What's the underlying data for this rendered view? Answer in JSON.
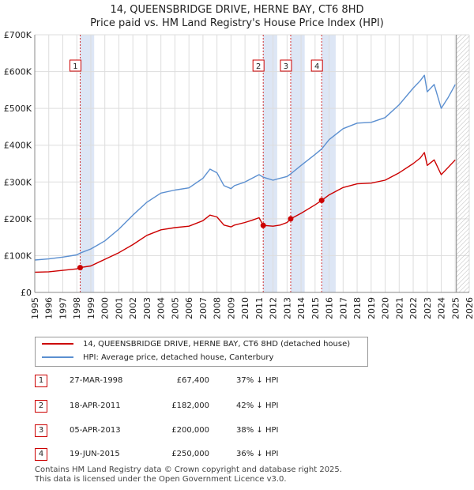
{
  "title_line1": "14, QUEENSBRIDGE DRIVE, HERNE BAY, CT6 8HD",
  "title_line2": "Price paid vs. HM Land Registry's House Price Index (HPI)",
  "colors": {
    "price_line": "#cc0000",
    "hpi_line": "#5b8fd0",
    "band": "#dde6f5",
    "marker_border": "#cc0000",
    "hatch": "#bbbbbb"
  },
  "legend": {
    "property_label": "14, QUEENSBRIDGE DRIVE, HERNE BAY, CT6 8HD (detached house)",
    "hpi_label": "HPI: Average price, detached house, Canterbury"
  },
  "sales": [
    {
      "num": "1",
      "date": "27-MAR-1998",
      "price": "£67,400",
      "hpi_diff": "37% ↓ HPI"
    },
    {
      "num": "2",
      "date": "18-APR-2011",
      "price": "£182,000",
      "hpi_diff": "42% ↓ HPI"
    },
    {
      "num": "3",
      "date": "05-APR-2013",
      "price": "£200,000",
      "hpi_diff": "38% ↓ HPI"
    },
    {
      "num": "4",
      "date": "19-JUN-2015",
      "price": "£250,000",
      "hpi_diff": "36% ↓ HPI"
    }
  ],
  "footer": {
    "line1": "Contains HM Land Registry data © Crown copyright and database right 2025.",
    "line2": "This data is licensed under the Open Government Licence v3.0."
  },
  "chart_data": {
    "type": "line",
    "title": "14, QUEENSBRIDGE DRIVE, HERNE BAY, CT6 8HD",
    "subtitle": "Price paid vs. HM Land Registry's House Price Index (HPI)",
    "xlim": [
      1995,
      2026
    ],
    "ylim": [
      0,
      700000
    ],
    "x_ticks": [
      1995,
      1996,
      1997,
      1998,
      1999,
      2000,
      2001,
      2002,
      2003,
      2004,
      2005,
      2006,
      2007,
      2008,
      2009,
      2010,
      2011,
      2012,
      2013,
      2014,
      2015,
      2016,
      2017,
      2018,
      2019,
      2020,
      2021,
      2022,
      2023,
      2024,
      2025,
      2026
    ],
    "y_ticks": [
      0,
      100000,
      200000,
      300000,
      400000,
      500000,
      600000,
      700000
    ],
    "y_tick_labels": [
      "£0",
      "£100K",
      "£200K",
      "£300K",
      "£400K",
      "£500K",
      "£600K",
      "£700K"
    ],
    "grid": true,
    "hatched_from": 2025.08,
    "sale_markers": [
      {
        "label": "1",
        "x": 1998.24,
        "y": 67400
      },
      {
        "label": "2",
        "x": 2011.3,
        "y": 182000
      },
      {
        "label": "3",
        "x": 2013.26,
        "y": 200000
      },
      {
        "label": "4",
        "x": 2015.47,
        "y": 250000
      }
    ],
    "series": [
      {
        "name": "14, QUEENSBRIDGE DRIVE, HERNE BAY, CT6 8HD (detached house)",
        "x": [
          1995.0,
          1996.0,
          1997.0,
          1998.0,
          1998.24,
          1999.0,
          2000.0,
          2001.0,
          2002.0,
          2003.0,
          2004.0,
          2005.0,
          2006.0,
          2007.0,
          2007.5,
          2008.0,
          2008.5,
          2009.0,
          2009.25,
          2010.0,
          2010.5,
          2011.0,
          2011.3,
          2012.0,
          2012.5,
          2013.0,
          2013.26,
          2014.0,
          2015.0,
          2015.47,
          2016.0,
          2017.0,
          2018.0,
          2019.0,
          2020.0,
          2021.0,
          2022.0,
          2022.5,
          2022.8,
          2023.0,
          2023.5,
          2024.0,
          2024.5,
          2025.0
        ],
        "values": [
          55000,
          56000,
          60000,
          64000,
          67400,
          72000,
          90000,
          108000,
          130000,
          155000,
          170000,
          176000,
          180000,
          195000,
          210000,
          205000,
          183000,
          178000,
          183000,
          190000,
          196000,
          203000,
          182000,
          180000,
          183000,
          190000,
          200000,
          215000,
          238000,
          250000,
          265000,
          285000,
          295000,
          297000,
          305000,
          325000,
          350000,
          365000,
          380000,
          345000,
          360000,
          320000,
          340000,
          360000
        ]
      },
      {
        "name": "HPI: Average price, detached house, Canterbury",
        "x": [
          1995.0,
          1996.0,
          1997.0,
          1998.0,
          1998.24,
          1999.0,
          2000.0,
          2001.0,
          2002.0,
          2003.0,
          2004.0,
          2005.0,
          2006.0,
          2007.0,
          2007.5,
          2008.0,
          2008.5,
          2009.0,
          2009.25,
          2010.0,
          2010.5,
          2011.0,
          2011.3,
          2012.0,
          2012.5,
          2013.0,
          2013.26,
          2014.0,
          2015.0,
          2015.47,
          2016.0,
          2017.0,
          2018.0,
          2019.0,
          2020.0,
          2021.0,
          2022.0,
          2022.5,
          2022.8,
          2023.0,
          2023.5,
          2024.0,
          2024.5,
          2025.0
        ],
        "values": [
          88000,
          91000,
          96000,
          102000,
          107000,
          118000,
          140000,
          172000,
          210000,
          245000,
          270000,
          278000,
          284000,
          310000,
          335000,
          325000,
          290000,
          282000,
          290000,
          300000,
          310000,
          320000,
          313000,
          305000,
          310000,
          315000,
          322000,
          345000,
          375000,
          390000,
          415000,
          445000,
          460000,
          462000,
          475000,
          510000,
          555000,
          575000,
          590000,
          545000,
          565000,
          500000,
          530000,
          565000
        ]
      }
    ]
  }
}
